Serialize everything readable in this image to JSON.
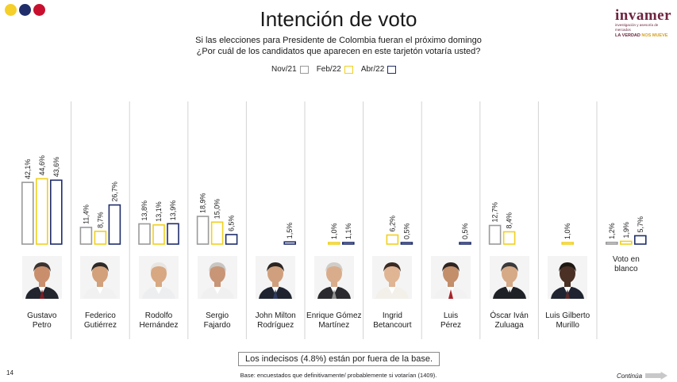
{
  "header": {
    "title": "Intención de voto",
    "subtitle_line1": "Si las elecciones para Presidente de Colombia fueran el próximo domingo",
    "subtitle_line2": "¿Por cuál de los candidatos que aparecen en este tarjetón votaría usted?"
  },
  "brand_dots": [
    "#f5cf2a",
    "#1f2d6b",
    "#c8102e"
  ],
  "logo": {
    "name": "invamer",
    "sub": "investigación y asesoría de mercados",
    "tag_a": "LA VERDAD",
    "tag_b": "NOS MUEVE",
    "color": "#6e2440",
    "tag_b_color": "#d6a21c"
  },
  "legend": [
    {
      "label": "Nov/21",
      "color": "#9a9a9a"
    },
    {
      "label": "Feb/22",
      "color": "#f0d020"
    },
    {
      "label": "Abr/22",
      "color": "#1f2d6b"
    }
  ],
  "chart_data": {
    "type": "bar",
    "title": "Intención de voto",
    "categories": [
      "Gustavo Petro",
      "Federico Gutiérrez",
      "Rodolfo Hernández",
      "Sergio Fajardo",
      "John Milton Rodríguez",
      "Enrique Gómez Martínez",
      "Ingrid Betancourt",
      "Luis Pérez",
      "Óscar Iván Zuluaga",
      "Luis Gilberto Murillo",
      "Voto en blanco"
    ],
    "category_lines": [
      [
        "Gustavo",
        "Petro"
      ],
      [
        "Federico",
        "Gutiérrez"
      ],
      [
        "Rodolfo",
        "Hernández"
      ],
      [
        "Sergio",
        "Fajardo"
      ],
      [
        "John Milton",
        "Rodríguez"
      ],
      [
        "Enrique Gómez",
        "Martínez"
      ],
      [
        "Ingrid",
        "Betancourt"
      ],
      [
        "Luis",
        "Pérez"
      ],
      [
        "Óscar Iván",
        "Zuluaga"
      ],
      [
        "Luis Gilberto",
        "Murillo"
      ],
      [
        "Voto en",
        "blanco"
      ]
    ],
    "series": [
      {
        "name": "Nov/21",
        "color": "#9a9a9a",
        "values": [
          42.1,
          11.4,
          13.8,
          18.9,
          null,
          null,
          null,
          null,
          12.7,
          null,
          1.2
        ],
        "labels": [
          "42,1%",
          "11,4%",
          "13,8%",
          "18,9%",
          null,
          null,
          null,
          null,
          "12,7%",
          null,
          "1,2%"
        ]
      },
      {
        "name": "Feb/22",
        "color": "#f0d020",
        "values": [
          44.6,
          8.7,
          13.1,
          15.0,
          null,
          1.0,
          6.2,
          null,
          8.4,
          1.0,
          1.9
        ],
        "labels": [
          "44,6%",
          "8,7%",
          "13,1%",
          "15,0%",
          null,
          "1,0%",
          "6,2%",
          null,
          "8,4%",
          "1,0%",
          "1,9%"
        ]
      },
      {
        "name": "Abr/22",
        "color": "#1f2d6b",
        "values": [
          43.6,
          26.7,
          13.9,
          6.5,
          1.5,
          1.1,
          0.5,
          0.5,
          null,
          null,
          5.7
        ],
        "labels": [
          "43,6%",
          "26,7%",
          "13,9%",
          "6,5%",
          "1,5%",
          "1,1%",
          "0,5%",
          "0,5%",
          null,
          null,
          "5,7%"
        ]
      }
    ],
    "ylim": [
      0,
      50
    ],
    "legend_position": "top-center",
    "grid": false
  },
  "photos": [
    {
      "skin": "#c98f6c",
      "hair": "#3a3330",
      "suit": "#22252e",
      "tie": "#7a1d25"
    },
    {
      "skin": "#d2a07a",
      "hair": "#2d2a29",
      "suit": "#f1f1f1",
      "tie": null
    },
    {
      "skin": "#d8a882",
      "hair": "#e8e6e2",
      "suit": "#edeef0",
      "tie": null
    },
    {
      "skin": "#c89577",
      "hair": "#c8c6c2",
      "suit": "#f0f0f0",
      "tie": null
    },
    {
      "skin": "#d0a07e",
      "hair": "#2a2523",
      "suit": "#1f2430",
      "tie": "#2f3e62"
    },
    {
      "skin": "#d9ad8c",
      "hair": "#cfcdc8",
      "suit": "#2b2b2f",
      "tie": "#8e8e8e"
    },
    {
      "skin": "#e0b594",
      "hair": "#3a2a22",
      "suit": "#f3f0ea",
      "tie": null
    },
    {
      "skin": "#c38e6a",
      "hair": "#2d2523",
      "suit": "#f2f2f2",
      "tie": "#a8222a"
    },
    {
      "skin": "#d6a987",
      "hair": "#3a3a3a",
      "suit": "#1e2126",
      "tie": "#1e2126"
    },
    {
      "skin": "#4a3025",
      "hair": "#1e1814",
      "suit": "#1f2430",
      "tie": "#5b2a2a"
    }
  ],
  "footer": {
    "note": "Los indecisos (4.8%) están por fuera de la base.",
    "base": "Base: encuestados que definitivamente/ probablemente si votarían (1409).",
    "page": "14",
    "continua": "Continúa"
  }
}
